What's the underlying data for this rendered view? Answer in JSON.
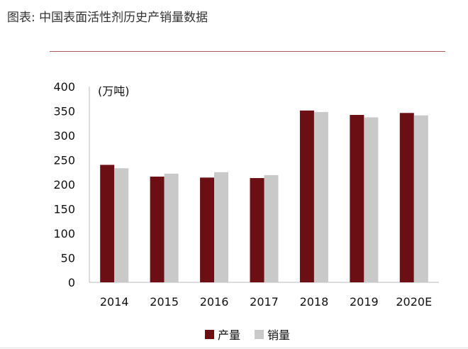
{
  "caption": "图表: 中国表面活性剂历史产销量数据",
  "chart_data": {
    "type": "bar",
    "unit_label": "(万吨)",
    "categories": [
      "2014",
      "2015",
      "2016",
      "2017",
      "2018",
      "2019",
      "2020E"
    ],
    "series": [
      {
        "name": "产量",
        "color": "#6b0f14",
        "values": [
          240,
          216,
          214,
          213,
          351,
          342,
          346
        ]
      },
      {
        "name": "销量",
        "color": "#c9c9c9",
        "values": [
          233,
          222,
          225,
          219,
          348,
          337,
          341
        ]
      }
    ],
    "ylim": [
      0,
      400
    ],
    "yticks": [
      0,
      50,
      100,
      150,
      200,
      250,
      300,
      350,
      400
    ],
    "grid": false,
    "legend": "bottom"
  }
}
